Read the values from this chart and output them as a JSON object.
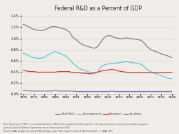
{
  "title": "Federal R&D as a Percent of GDP",
  "years_full": [
    1976,
    1977,
    1978,
    1979,
    1980,
    1981,
    1982,
    1983,
    1984,
    1985,
    1986,
    1987,
    1988,
    1989,
    1990,
    1991,
    1992,
    1993,
    1994,
    1995,
    1996,
    1997,
    1998,
    1999,
    2000,
    2001,
    2002,
    2003,
    2004,
    2005,
    2006,
    2007,
    2008,
    2009,
    2010,
    2011,
    2012,
    2013,
    2014,
    2015,
    2016,
    2017,
    2018
  ],
  "total_rd": [
    1.25,
    1.23,
    1.19,
    1.16,
    1.15,
    1.14,
    1.15,
    1.18,
    1.21,
    1.21,
    1.2,
    1.18,
    1.16,
    1.12,
    1.02,
    0.97,
    0.92,
    0.88,
    0.86,
    0.84,
    0.82,
    0.85,
    0.94,
    1.02,
    1.05,
    1.04,
    1.01,
    1.0,
    0.99,
    1.01,
    1.0,
    0.99,
    0.98,
    0.97,
    0.93,
    0.85,
    0.8,
    0.77,
    0.75,
    0.72,
    0.7,
    0.68,
    0.65
  ],
  "development": [
    0.73,
    0.71,
    0.67,
    0.65,
    0.64,
    0.64,
    0.66,
    0.7,
    0.74,
    0.76,
    0.74,
    0.71,
    0.68,
    0.63,
    0.55,
    0.5,
    0.45,
    0.43,
    0.41,
    0.38,
    0.36,
    0.4,
    0.49,
    0.52,
    0.54,
    0.55,
    0.55,
    0.56,
    0.57,
    0.58,
    0.57,
    0.56,
    0.55,
    0.54,
    0.5,
    0.44,
    0.4,
    0.37,
    0.35,
    0.33,
    0.3,
    0.28,
    0.27
  ],
  "research": [
    0.42,
    0.41,
    0.4,
    0.4,
    0.39,
    0.39,
    0.39,
    0.39,
    0.39,
    0.39,
    0.4,
    0.4,
    0.4,
    0.4,
    0.38,
    0.38,
    0.38,
    0.37,
    0.37,
    0.36,
    0.38,
    0.39,
    0.41,
    0.42,
    0.43,
    0.44,
    0.43,
    0.41,
    0.4,
    0.39,
    0.38,
    0.38,
    0.38,
    0.38,
    0.38,
    0.38,
    0.38,
    0.38,
    0.38,
    0.38,
    0.38,
    0.38,
    0.38
  ],
  "facilities": [
    0.06,
    0.06,
    0.05,
    0.05,
    0.05,
    0.05,
    0.05,
    0.05,
    0.05,
    0.06,
    0.05,
    0.05,
    0.05,
    0.05,
    0.05,
    0.04,
    0.04,
    0.04,
    0.04,
    0.04,
    0.04,
    0.04,
    0.04,
    0.04,
    0.04,
    0.05,
    0.04,
    0.04,
    0.04,
    0.04,
    0.04,
    0.04,
    0.04,
    0.04,
    0.04,
    0.04,
    0.04,
    0.04,
    0.04,
    0.04,
    0.04,
    0.04,
    0.04
  ],
  "total_color": "#7f7f7f",
  "development_color": "#5bc4d9",
  "research_color": "#d73232",
  "facilities_color": "#8b6bb1",
  "background_color": "#f0ede8",
  "plot_bg_color": "#f0ede8",
  "ylim": [
    0.0,
    1.45
  ],
  "yticks": [
    0.0,
    0.2,
    0.4,
    0.6,
    0.8,
    1.0,
    1.2,
    1.4
  ],
  "xticks": [
    1976,
    1979,
    1982,
    1985,
    1988,
    1991,
    1994,
    1997,
    2000,
    2003,
    2006,
    2009,
    2012,
    2015,
    2018
  ],
  "legend_labels": [
    "Total R&D",
    "Development",
    "Research",
    "Facilities"
  ]
}
